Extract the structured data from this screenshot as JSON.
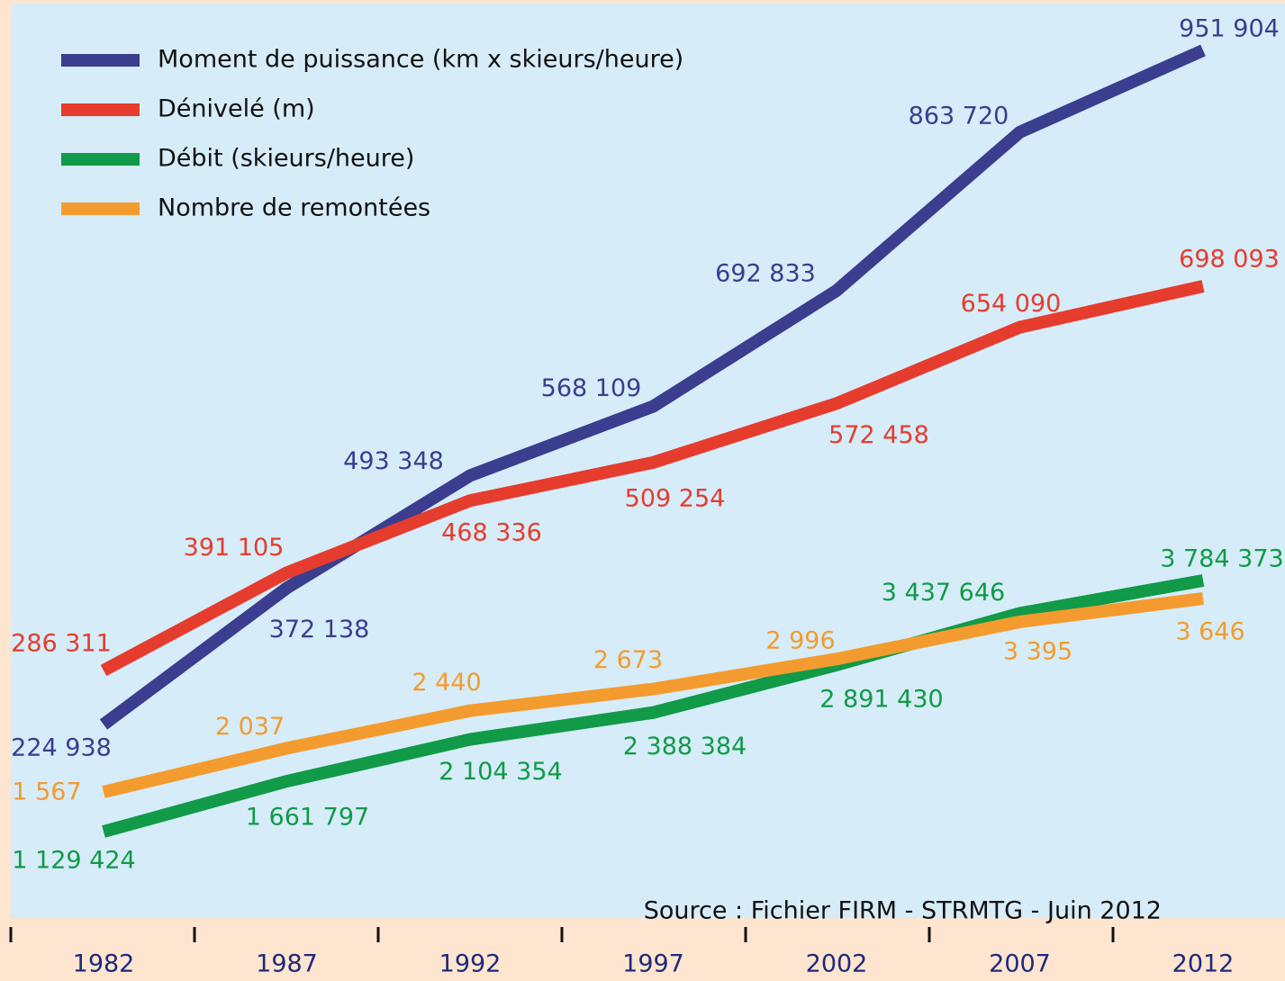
{
  "chart_data": {
    "type": "line",
    "categories": [
      "1982",
      "1987",
      "1992",
      "1997",
      "2002",
      "2007",
      "2012"
    ],
    "series": [
      {
        "name": "Moment de puissance (km x skieurs/heure)",
        "color": "#3b3d8f",
        "values": [
          224938,
          372138,
          493348,
          568109,
          692833,
          863720,
          951904
        ],
        "value_labels": [
          "224 938",
          "372 138",
          "493 348",
          "568 109",
          "692 833",
          "863 720",
          "951 904"
        ]
      },
      {
        "name": "Dénivelé (m)",
        "color": "#e53c2e",
        "values": [
          286311,
          391105,
          468336,
          509254,
          572458,
          654090,
          698093
        ],
        "value_labels": [
          "286 311",
          "391 105",
          "468 336",
          "509 254",
          "572 458",
          "654 090",
          "698 093"
        ]
      },
      {
        "name": "Débit (skieurs/heure)",
        "color": "#119a48",
        "values": [
          1129424,
          1661797,
          2104354,
          2388384,
          2891430,
          3437646,
          3784373
        ],
        "value_labels": [
          "1 129 424",
          "1 661 797",
          "2 104 354",
          "2 388 384",
          "2 891 430",
          "3 437 646",
          "3 784 373"
        ]
      },
      {
        "name": "Nombre de remontées",
        "color": "#f39b2e",
        "values": [
          1567,
          2037,
          2440,
          2673,
          2996,
          3395,
          3646
        ],
        "value_labels": [
          "1 567",
          "2 037",
          "2 440",
          "2 673",
          "2 996",
          "3 395",
          "3 646"
        ]
      }
    ],
    "annotation": "Source : Fichier FIRM - STRMTG - Juin 2012"
  }
}
